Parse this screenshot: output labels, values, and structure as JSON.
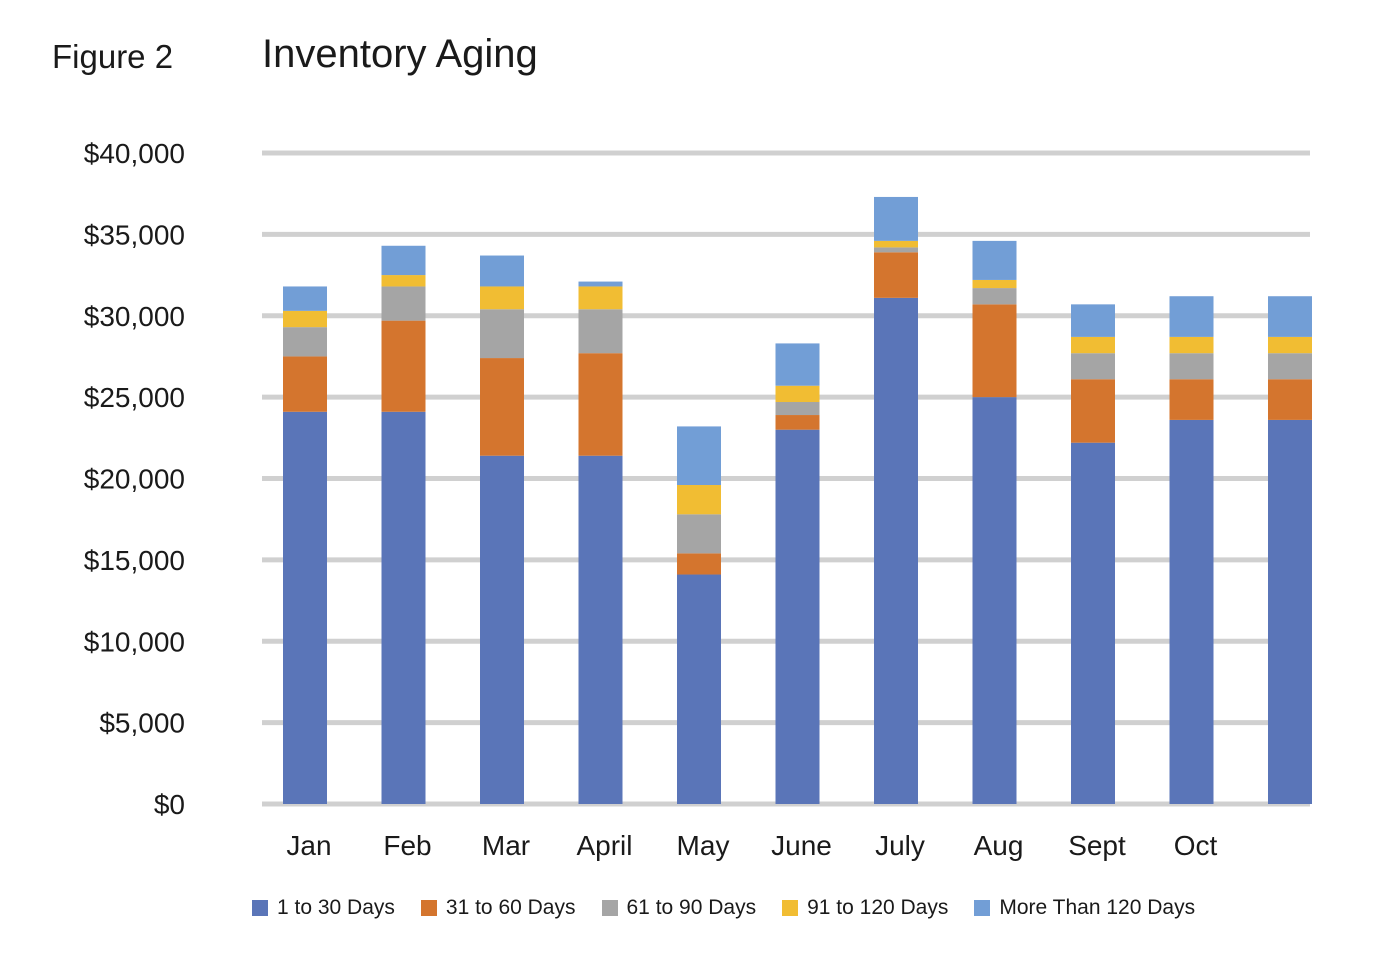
{
  "figure_label": "Figure 2",
  "chart_data": {
    "type": "bar",
    "stacked": true,
    "title": "Inventory Aging",
    "xlabel": "",
    "ylabel": "",
    "ylim": [
      0,
      40000
    ],
    "yticks": [
      0,
      5000,
      10000,
      15000,
      20000,
      25000,
      30000,
      35000,
      40000
    ],
    "ytick_labels": [
      "$0",
      "$5,000",
      "$10,000",
      "$15,000",
      "$20,000",
      "$25,000",
      "$30,000",
      "$35,000",
      "$40,000"
    ],
    "grid": true,
    "legend_position": "bottom",
    "categories": [
      "Jan",
      "Feb",
      "Mar",
      "April",
      "May",
      "June",
      "July",
      "Aug",
      "Sept",
      "Oct",
      ""
    ],
    "series": [
      {
        "name": "1 to 30 Days",
        "color": "#5a75b8",
        "values": [
          24100,
          24100,
          21400,
          21400,
          14100,
          23000,
          31100,
          25000,
          22200,
          23600,
          23600
        ]
      },
      {
        "name": "31 to 60 Days",
        "color": "#d4752e",
        "values": [
          3400,
          5600,
          6000,
          6300,
          1300,
          900,
          2800,
          5700,
          3900,
          2500,
          2500
        ]
      },
      {
        "name": "61 to 90 Days",
        "color": "#a5a5a5",
        "values": [
          1800,
          2100,
          3000,
          2700,
          2400,
          800,
          300,
          1000,
          1600,
          1600,
          1600
        ]
      },
      {
        "name": "91 to 120 Days",
        "color": "#f1bd33",
        "values": [
          1000,
          700,
          1400,
          1400,
          1800,
          1000,
          400,
          500,
          1000,
          1000,
          1000
        ]
      },
      {
        "name": "More Than 120 Days",
        "color": "#729ed6",
        "values": [
          1500,
          1800,
          1900,
          300,
          3600,
          2600,
          2700,
          2400,
          2000,
          2500,
          2500
        ]
      }
    ]
  }
}
